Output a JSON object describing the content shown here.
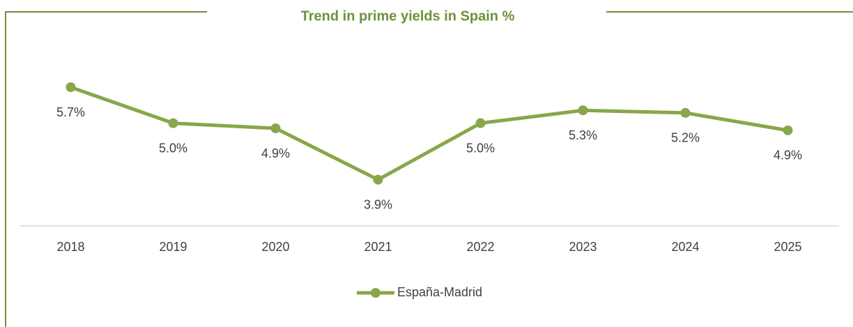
{
  "chart_data": {
    "type": "line",
    "title": "Trend in prime yields in Spain %",
    "categories": [
      "2018",
      "2019",
      "2020",
      "2021",
      "2022",
      "2023",
      "2024",
      "2025"
    ],
    "series": [
      {
        "name": "España-Madrid",
        "color": "#88a74a",
        "values": [
          5.7,
          5.0,
          4.9,
          3.9,
          5.0,
          5.25,
          5.2,
          4.86
        ],
        "value_labels": [
          "5.7%",
          "5.0%",
          "4.9%",
          "3.9%",
          "5.0%",
          "5.3%",
          "5.2%",
          "4.9%"
        ]
      }
    ],
    "ylim": [
      3,
      6
    ],
    "legend": "bottom"
  }
}
